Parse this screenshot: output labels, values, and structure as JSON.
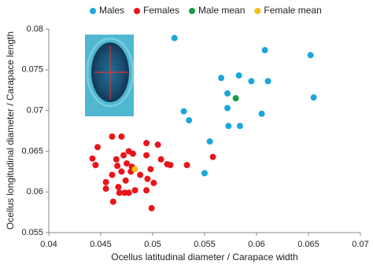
{
  "chart_data": {
    "type": "scatter",
    "xlabel": "Ocellus latitudinal diameter / Carapace width",
    "ylabel": "Ocellus longitudinal diameter / Carapace length",
    "xlim": [
      0.04,
      0.07
    ],
    "xticks": [
      0.04,
      0.045,
      0.05,
      0.055,
      0.06,
      0.065,
      0.07
    ],
    "ylim": [
      0.055,
      0.08
    ],
    "yticks": [
      0.055,
      0.06,
      0.065,
      0.07,
      0.075,
      0.08
    ],
    "legend": "top",
    "series": [
      {
        "name": "Males",
        "color": "#1ba6dc",
        "x": [
          0.0521,
          0.0608,
          0.0652,
          0.0583,
          0.0566,
          0.0595,
          0.0611,
          0.0572,
          0.0655,
          0.0572,
          0.0605,
          0.053,
          0.0535,
          0.0573,
          0.0584,
          0.0555,
          0.055
        ],
        "y": [
          0.0789,
          0.0774,
          0.0768,
          0.0743,
          0.074,
          0.0736,
          0.0736,
          0.0721,
          0.0716,
          0.0703,
          0.0696,
          0.0699,
          0.0688,
          0.0681,
          0.0681,
          0.0662,
          0.0623
        ]
      },
      {
        "name": "Females",
        "color": "#e8151b",
        "x": [
          0.0461,
          0.047,
          0.0447,
          0.0477,
          0.0494,
          0.0505,
          0.0494,
          0.0481,
          0.0472,
          0.0442,
          0.0465,
          0.0508,
          0.0514,
          0.0517,
          0.0533,
          0.0558,
          0.0445,
          0.0466,
          0.0475,
          0.048,
          0.047,
          0.0461,
          0.0479,
          0.0498,
          0.0488,
          0.0455,
          0.0474,
          0.0495,
          0.0501,
          0.0467,
          0.0455,
          0.0483,
          0.0494,
          0.0468,
          0.0477,
          0.0462,
          0.0499,
          0.0473
        ],
        "y": [
          0.0668,
          0.0668,
          0.0655,
          0.065,
          0.066,
          0.0658,
          0.0645,
          0.0647,
          0.0645,
          0.0641,
          0.064,
          0.064,
          0.0634,
          0.0633,
          0.0633,
          0.0643,
          0.0633,
          0.0632,
          0.0635,
          0.0631,
          0.0625,
          0.0621,
          0.0625,
          0.0628,
          0.0621,
          0.0612,
          0.0614,
          0.0616,
          0.0611,
          0.0606,
          0.0604,
          0.0602,
          0.0602,
          0.0599,
          0.0599,
          0.0588,
          0.058,
          0.0599
        ]
      },
      {
        "name": "Male mean",
        "color": "#1c9a4a",
        "x": [
          0.058
        ],
        "y": [
          0.0715
        ]
      },
      {
        "name": "Female mean",
        "color": "#f5c015",
        "x": [
          0.0483
        ],
        "y": [
          0.0628
        ]
      }
    ]
  }
}
